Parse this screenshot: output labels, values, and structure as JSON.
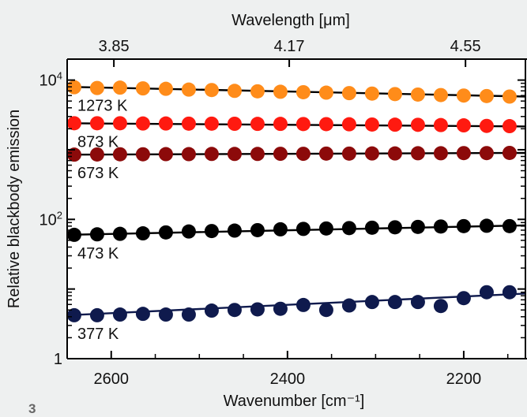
{
  "panel_label": "3",
  "chart_data": {
    "type": "scatter",
    "title": "",
    "xlabel": "Wavenumber [cm⁻¹]",
    "ylabel": "Relative blackbody emission",
    "x2label": "Wavelength [μm]",
    "xlim": [
      2650,
      2130
    ],
    "ylim": [
      1,
      20000
    ],
    "yscale": "log",
    "x_ticks": [
      2600,
      2400,
      2200
    ],
    "x_tick_labels": [
      "2600",
      "2400",
      "2200"
    ],
    "x2_ticks": [
      {
        "label": "3.85",
        "at_wavenumber": 2597
      },
      {
        "label": "4.17",
        "at_wavenumber": 2398
      },
      {
        "label": "4.55",
        "at_wavenumber": 2198
      }
    ],
    "y_ticks": [
      {
        "value": 1,
        "base": "1",
        "exp": ""
      },
      {
        "value": 100,
        "base": "10",
        "exp": "2"
      },
      {
        "value": 10000,
        "base": "10",
        "exp": "4"
      }
    ],
    "series": [
      {
        "name": "1273 K",
        "color": "#ff8c1a",
        "x": [
          2642,
          2616,
          2590,
          2564,
          2538,
          2512,
          2486,
          2460,
          2434,
          2408,
          2382,
          2356,
          2330,
          2304,
          2278,
          2252,
          2226,
          2200,
          2174,
          2148
        ],
        "y": [
          7900,
          7700,
          7800,
          7600,
          7500,
          7300,
          7200,
          7000,
          6900,
          6800,
          6700,
          6600,
          6500,
          6400,
          6300,
          6200,
          6100,
          6000,
          5900,
          5800
        ],
        "fit": [
          [
            2650,
            8000
          ],
          [
            2130,
            5800
          ]
        ]
      },
      {
        "name": "873 K",
        "color": "#ff1a10",
        "x": [
          2642,
          2616,
          2590,
          2564,
          2538,
          2512,
          2486,
          2460,
          2434,
          2408,
          2382,
          2356,
          2330,
          2304,
          2278,
          2252,
          2226,
          2200,
          2174,
          2148
        ],
        "y": [
          2400,
          2400,
          2400,
          2380,
          2380,
          2370,
          2370,
          2360,
          2350,
          2350,
          2340,
          2330,
          2320,
          2300,
          2290,
          2280,
          2260,
          2240,
          2200,
          2180
        ],
        "fit": [
          [
            2650,
            2400
          ],
          [
            2130,
            2160
          ]
        ]
      },
      {
        "name": "673 K",
        "color": "#8c0a0a",
        "x": [
          2642,
          2616,
          2590,
          2564,
          2538,
          2512,
          2486,
          2460,
          2434,
          2408,
          2382,
          2356,
          2330,
          2304,
          2278,
          2252,
          2226,
          2200,
          2174,
          2148
        ],
        "y": [
          850,
          855,
          860,
          860,
          865,
          865,
          870,
          870,
          870,
          875,
          875,
          880,
          880,
          885,
          885,
          890,
          890,
          895,
          895,
          900
        ],
        "fit": [
          [
            2650,
            850
          ],
          [
            2130,
            900
          ]
        ]
      },
      {
        "name": "473 K",
        "color": "#000000",
        "x": [
          2642,
          2616,
          2590,
          2564,
          2538,
          2512,
          2486,
          2460,
          2434,
          2408,
          2382,
          2356,
          2330,
          2304,
          2278,
          2252,
          2226,
          2200,
          2174,
          2148
        ],
        "y": [
          60,
          61,
          62,
          63,
          65,
          67,
          68,
          69,
          70,
          72,
          73,
          74,
          75,
          76,
          77,
          78,
          79,
          80,
          81,
          80
        ],
        "fit": [
          [
            2650,
            60
          ],
          [
            2130,
            82
          ]
        ]
      },
      {
        "name": "377 K",
        "color": "#0f1a4d",
        "x": [
          2642,
          2616,
          2590,
          2564,
          2538,
          2512,
          2486,
          2460,
          2434,
          2408,
          2382,
          2356,
          2330,
          2304,
          2278,
          2252,
          2226,
          2200,
          2174,
          2148
        ],
        "y": [
          4.2,
          4.2,
          4.3,
          4.4,
          4.3,
          4.3,
          4.9,
          5.0,
          5.1,
          5.2,
          5.9,
          5.0,
          5.8,
          6.5,
          6.5,
          6.5,
          5.7,
          7.4,
          9.0,
          9.0
        ],
        "fit": [
          [
            2650,
            4.2
          ],
          [
            2130,
            8.6
          ]
        ]
      }
    ]
  }
}
